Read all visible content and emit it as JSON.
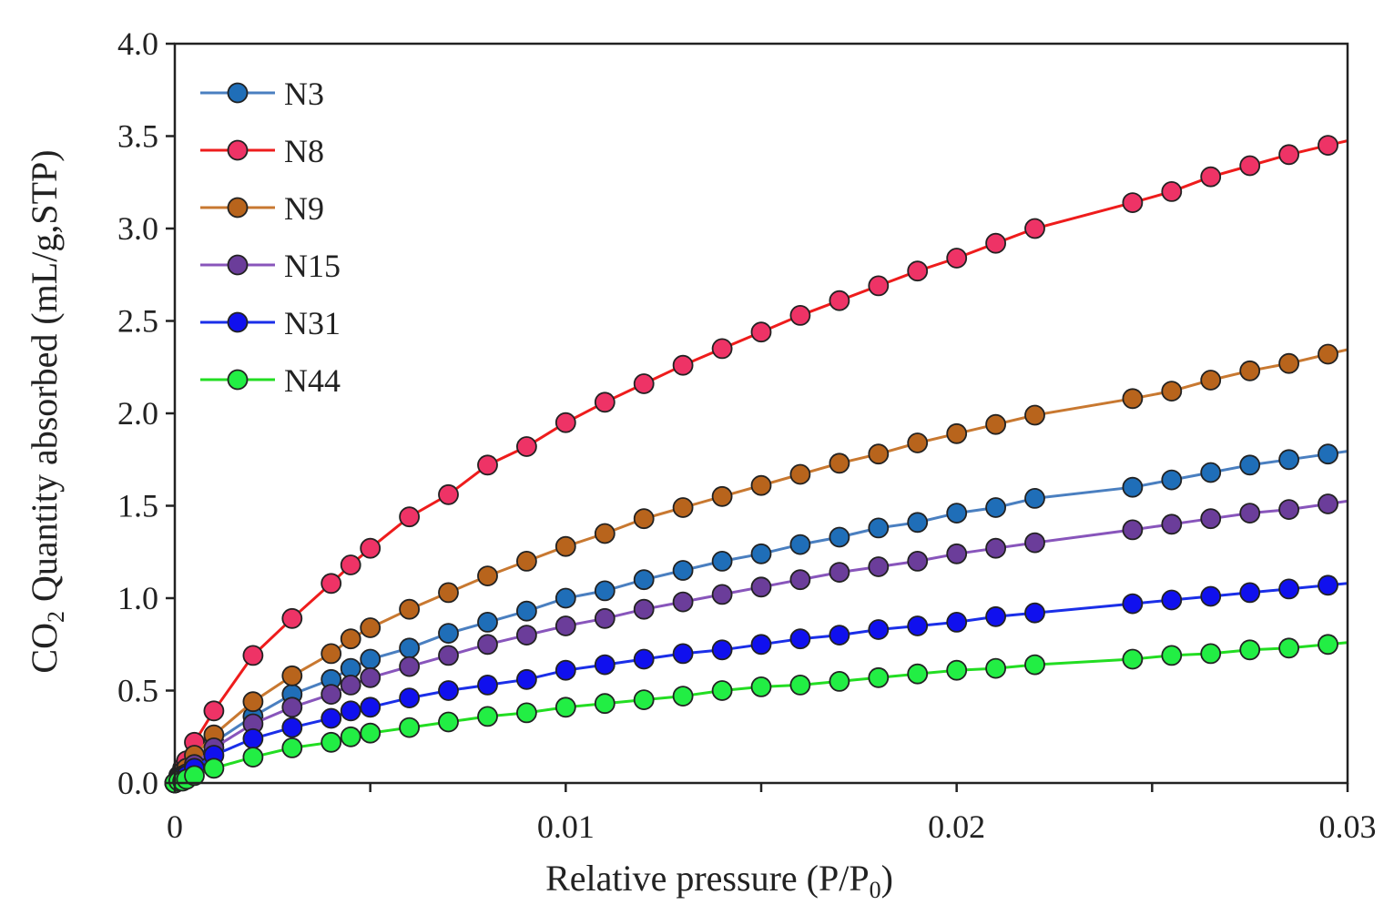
{
  "chart_data": {
    "type": "line",
    "title": "",
    "xlabel": "Relative pressure  (P/P",
    "xlabel_sub": "0",
    "xlabel_end": ")",
    "ylabel_prefix": "CO",
    "ylabel_sub": "2",
    "ylabel_rest": " Quantity absorbed (mL/g,STP)",
    "xlim": [
      0,
      0.03
    ],
    "ylim": [
      0,
      4.0
    ],
    "x_ticks": [
      0,
      0.01,
      0.02,
      0.03
    ],
    "x_tick_labels": [
      "0",
      "0.01",
      "0.02",
      "0.03"
    ],
    "y_ticks": [
      0,
      0.5,
      1.0,
      1.5,
      2.0,
      2.5,
      3.0,
      3.5,
      4.0
    ],
    "y_tick_labels": [
      "0.0",
      "0.5",
      "1.0",
      "1.5",
      "2.0",
      "2.5",
      "3.0",
      "3.5",
      "4.0"
    ],
    "grid": false,
    "legend_position": "top-left",
    "x": [
      0.0,
      0.0001,
      0.0002,
      0.0003,
      0.0005,
      0.001,
      0.002,
      0.003,
      0.004,
      0.0045,
      0.005,
      0.006,
      0.007,
      0.008,
      0.009,
      0.01,
      0.011,
      0.012,
      0.013,
      0.014,
      0.015,
      0.016,
      0.017,
      0.018,
      0.019,
      0.02,
      0.021,
      0.022,
      0.0245,
      0.0255,
      0.0265,
      0.0275,
      0.0285,
      0.0295
    ],
    "series": [
      {
        "name": "N3",
        "color": "#4a7fc0",
        "marker": "#1f6eb8",
        "values": [
          0.0,
          0.02,
          0.04,
          0.06,
          0.12,
          0.22,
          0.36,
          0.48,
          0.56,
          0.62,
          0.67,
          0.73,
          0.81,
          0.87,
          0.93,
          1.0,
          1.04,
          1.1,
          1.15,
          1.2,
          1.24,
          1.29,
          1.33,
          1.38,
          1.41,
          1.46,
          1.49,
          1.54,
          1.6,
          1.64,
          1.68,
          1.72,
          1.75,
          1.78
        ]
      },
      {
        "name": "N8",
        "color": "#ee1c1c",
        "marker": "#ee3366",
        "values": [
          0.0,
          0.04,
          0.08,
          0.12,
          0.22,
          0.39,
          0.69,
          0.89,
          1.08,
          1.18,
          1.27,
          1.44,
          1.56,
          1.72,
          1.82,
          1.95,
          2.06,
          2.16,
          2.26,
          2.35,
          2.44,
          2.53,
          2.61,
          2.69,
          2.77,
          2.84,
          2.92,
          3.0,
          3.14,
          3.2,
          3.28,
          3.34,
          3.4,
          3.45
        ]
      },
      {
        "name": "N9",
        "color": "#c87830",
        "marker": "#b8641c",
        "values": [
          0.0,
          0.03,
          0.06,
          0.08,
          0.15,
          0.26,
          0.44,
          0.58,
          0.7,
          0.78,
          0.84,
          0.94,
          1.03,
          1.12,
          1.2,
          1.28,
          1.35,
          1.43,
          1.49,
          1.55,
          1.61,
          1.67,
          1.73,
          1.78,
          1.84,
          1.89,
          1.94,
          1.99,
          2.08,
          2.12,
          2.18,
          2.23,
          2.27,
          2.32
        ]
      },
      {
        "name": "N15",
        "color": "#8855bb",
        "marker": "#6b3d9a",
        "values": [
          0.0,
          0.02,
          0.04,
          0.05,
          0.1,
          0.19,
          0.32,
          0.41,
          0.48,
          0.53,
          0.57,
          0.63,
          0.69,
          0.75,
          0.8,
          0.85,
          0.89,
          0.94,
          0.98,
          1.02,
          1.06,
          1.1,
          1.14,
          1.17,
          1.2,
          1.24,
          1.27,
          1.3,
          1.37,
          1.4,
          1.43,
          1.46,
          1.48,
          1.51
        ]
      },
      {
        "name": "N31",
        "color": "#1a2ee8",
        "marker": "#1010ee",
        "values": [
          0.0,
          0.01,
          0.03,
          0.04,
          0.08,
          0.15,
          0.24,
          0.3,
          0.35,
          0.39,
          0.41,
          0.46,
          0.5,
          0.53,
          0.56,
          0.61,
          0.64,
          0.67,
          0.7,
          0.72,
          0.75,
          0.78,
          0.8,
          0.83,
          0.85,
          0.87,
          0.9,
          0.92,
          0.97,
          0.99,
          1.01,
          1.03,
          1.05,
          1.07
        ]
      },
      {
        "name": "N44",
        "color": "#22dd22",
        "marker": "#22ee44",
        "values": [
          0.0,
          0.01,
          0.01,
          0.02,
          0.04,
          0.08,
          0.14,
          0.19,
          0.22,
          0.25,
          0.27,
          0.3,
          0.33,
          0.36,
          0.38,
          0.41,
          0.43,
          0.45,
          0.47,
          0.5,
          0.52,
          0.53,
          0.55,
          0.57,
          0.59,
          0.61,
          0.62,
          0.64,
          0.67,
          0.69,
          0.7,
          0.72,
          0.73,
          0.75
        ]
      }
    ]
  }
}
